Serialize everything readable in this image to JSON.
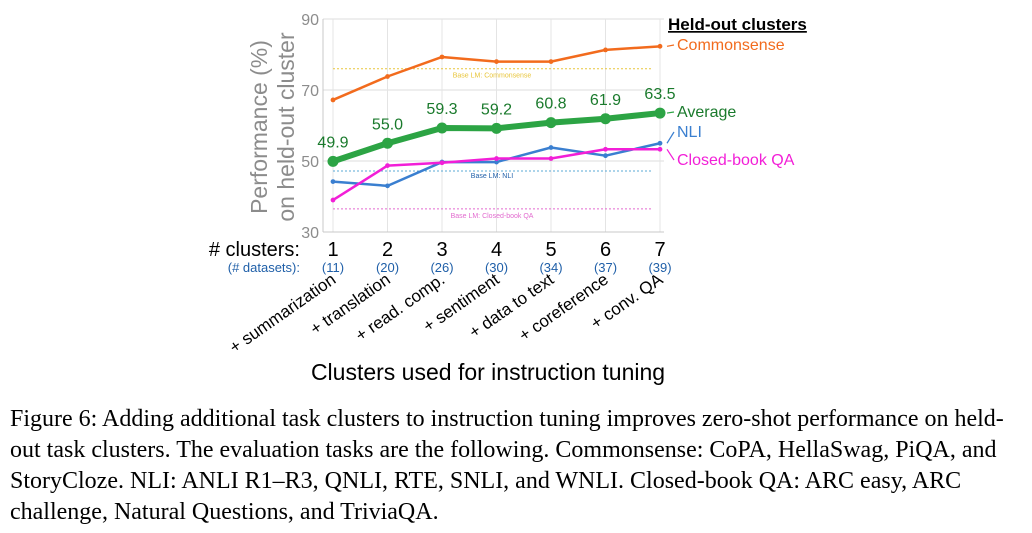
{
  "chart_data": {
    "type": "line",
    "ylabel_line1": "Performance (%)",
    "ylabel_line2": "on held-out cluster",
    "xlabel": "Clusters used for instruction tuning",
    "ylim": [
      30,
      90
    ],
    "yticks": [
      30,
      50,
      70,
      90
    ],
    "x": [
      1,
      2,
      3,
      4,
      5,
      6,
      7
    ],
    "xaxis_title": "# clusters:",
    "datasets_title": "(# datasets):",
    "datasets": [
      "(11)",
      "(20)",
      "(26)",
      "(30)",
      "(34)",
      "(37)",
      "(39)"
    ],
    "cluster_labels": [
      "+ summarization",
      "+ translation",
      "+ read. comp.",
      "+ sentiment",
      "+ data to text",
      "+ coreference",
      "+ conv. QA"
    ],
    "legend_title": "Held-out clusters",
    "series": [
      {
        "name": "Commonsense",
        "color": "#f26b1d",
        "width": 2.5,
        "values": [
          67.2,
          73.8,
          79.3,
          78.0,
          78.0,
          81.3,
          82.3
        ]
      },
      {
        "name": "Average",
        "color": "#2ca444",
        "width": 6,
        "values": [
          49.9,
          55.0,
          59.3,
          59.2,
          60.8,
          61.9,
          63.5
        ],
        "labels": [
          "49.9",
          "55.0",
          "59.3",
          "59.2",
          "60.8",
          "61.9",
          "63.5"
        ]
      },
      {
        "name": "NLI",
        "color": "#3a7fd0",
        "width": 2.5,
        "values": [
          44.2,
          43.0,
          49.7,
          49.7,
          53.8,
          51.5,
          55.0
        ]
      },
      {
        "name": "Closed-book QA",
        "color": "#f21fd7",
        "width": 2.5,
        "values": [
          39.0,
          48.7,
          49.5,
          50.7,
          50.7,
          53.3,
          53.3
        ]
      }
    ],
    "baselines": [
      {
        "label": "Base LM: Commonsense",
        "value": 76.0,
        "color": "#e8c53a"
      },
      {
        "label": "Base LM: NLI",
        "value": 47.2,
        "color": "#5aa9d6"
      },
      {
        "label": "Base LM: Closed-book QA",
        "value": 36.5,
        "color": "#e26bcf"
      }
    ]
  },
  "caption": "Figure 6: Adding additional task clusters to instruction tuning improves zero-shot performance on held-out task clusters. The evaluation tasks are the following. Commonsense: CoPA, HellaSwag, PiQA, and StoryCloze. NLI: ANLI R1–R3, QNLI, RTE, SNLI, and WNLI. Closed-book QA: ARC easy, ARC challenge, Natural Questions, and TriviaQA."
}
